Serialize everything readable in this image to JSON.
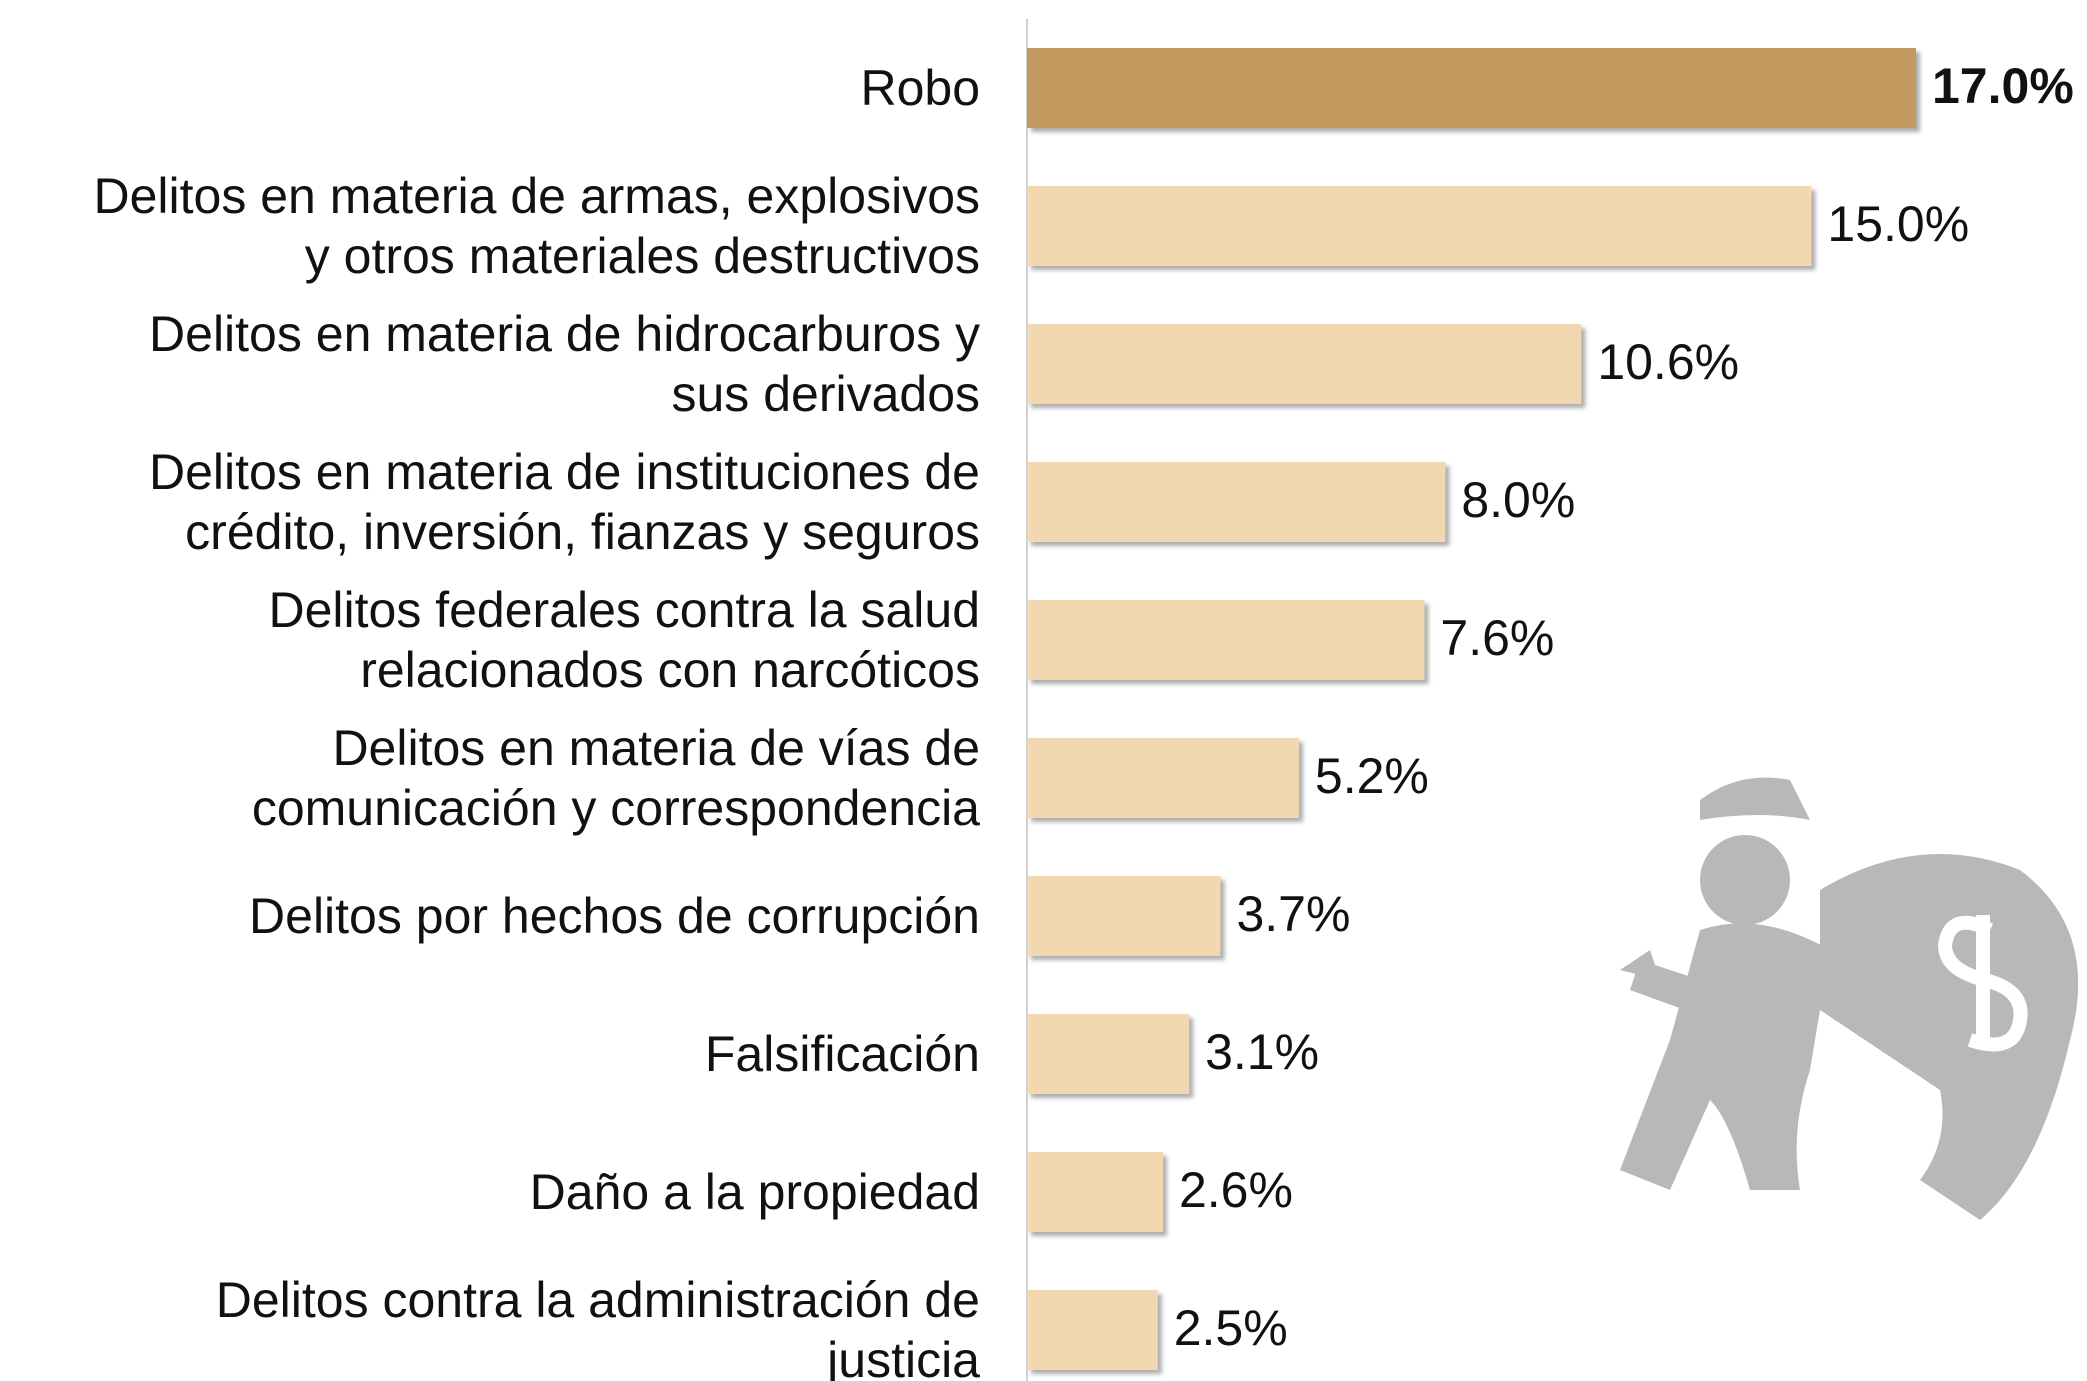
{
  "chart_data": {
    "type": "bar",
    "orientation": "horizontal",
    "categories": [
      "Robo",
      "Delitos en materia de armas, explosivos\ny otros materiales destructivos",
      "Delitos en materia de hidrocarburos y\nsus derivados",
      "Delitos en materia de instituciones de\ncrédito, inversión, fianzas y seguros",
      "Delitos federales contra la salud\nrelacionados con narcóticos",
      "Delitos en materia de vías de\ncomunicación y correspondencia",
      "Delitos por hechos de corrupción",
      "Falsificación",
      "Daño a la propiedad",
      "Delitos contra la administración de\njusticia"
    ],
    "values": [
      17.0,
      15.0,
      10.6,
      8.0,
      7.6,
      5.2,
      3.7,
      3.1,
      2.6,
      2.5
    ],
    "value_labels": [
      "17.0%",
      "15.0%",
      "10.6%",
      "8.0%",
      "7.6%",
      "5.2%",
      "3.7%",
      "3.1%",
      "2.6%",
      "2.5%"
    ],
    "colors": [
      "#c29a5f",
      "#f2d8b0",
      "#f2d8b0",
      "#f2d8b0",
      "#f2d8b0",
      "#f2d8b0",
      "#f2d8b0",
      "#f2d8b0",
      "#f2d8b0",
      "#f2d8b0"
    ],
    "highlight_index": 0,
    "xlim": [
      0,
      17
    ]
  }
}
